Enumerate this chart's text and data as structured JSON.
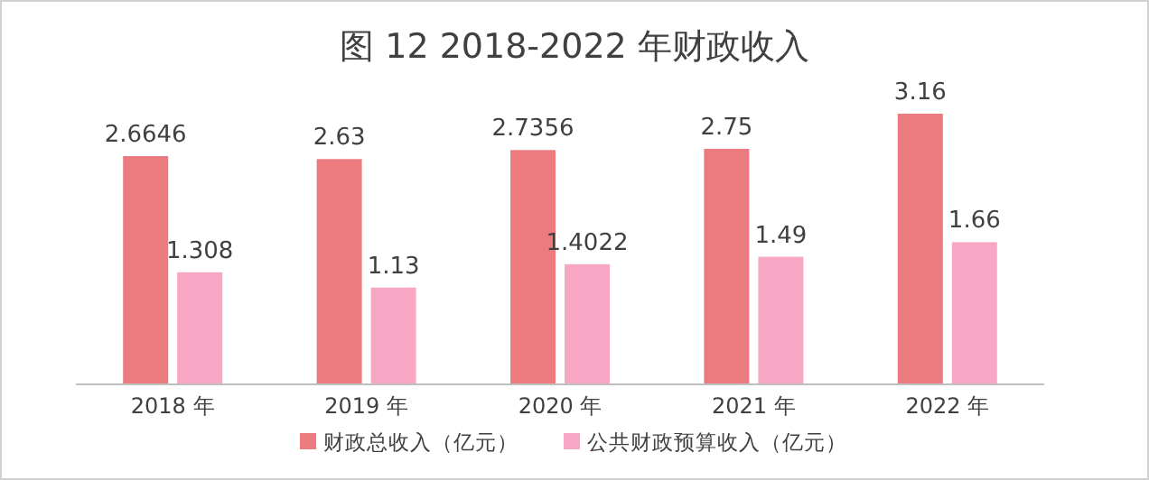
{
  "chart_data": {
    "type": "bar",
    "title": "图 12  2018-2022 年财政收入",
    "categories": [
      "2018 年",
      "2019 年",
      "2020 年",
      "2021 年",
      "2022 年"
    ],
    "series": [
      {
        "name": "财政总收入（亿元）",
        "color": "#ec7b80",
        "values": [
          2.6646,
          2.63,
          2.7356,
          2.75,
          3.16
        ]
      },
      {
        "name": "公共财政预算收入（亿元）",
        "color": "#f7a6c4",
        "values": [
          1.308,
          1.13,
          1.4022,
          1.49,
          1.66
        ]
      }
    ],
    "data_labels": true,
    "legend": "bottom"
  }
}
